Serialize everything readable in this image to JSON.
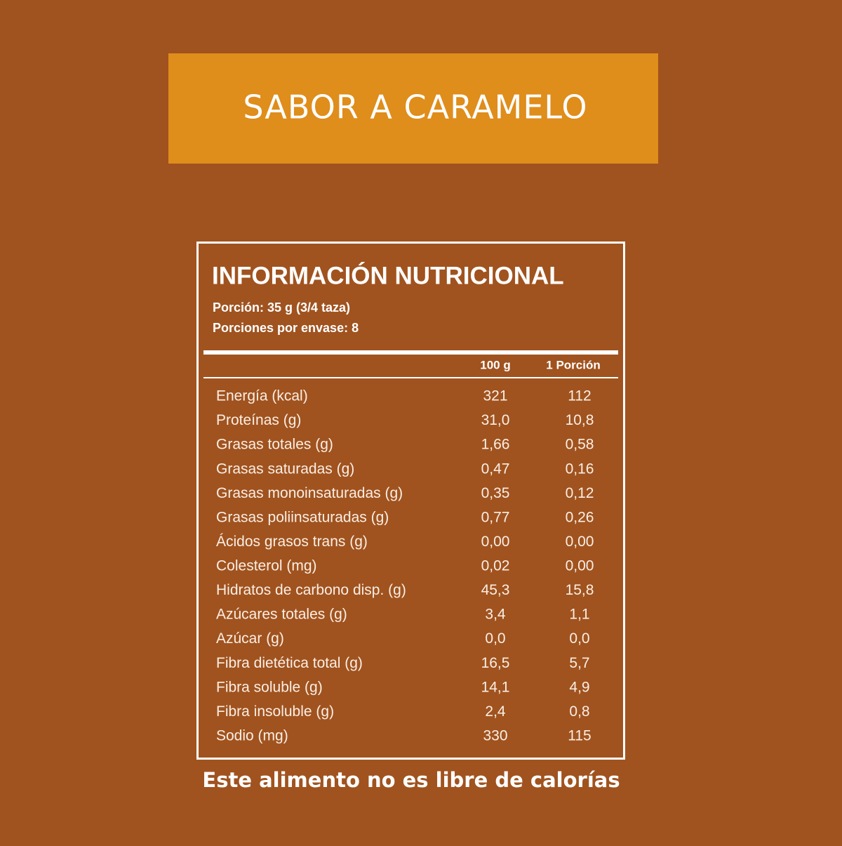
{
  "banner": {
    "title": "SABOR A CARAMELO"
  },
  "table": {
    "title": "INFORMACIÓN NUTRICIONAL",
    "serving": "Porción: 35 g  (3/4 taza)",
    "servings_per_container": "Porciones por envase: 8",
    "columns": [
      "100 g",
      "1 Porción"
    ],
    "rows": [
      [
        "Energía (kcal)",
        "321",
        "112"
      ],
      [
        "Proteínas (g)",
        "31,0",
        "10,8"
      ],
      [
        "Grasas totales (g)",
        "1,66",
        "0,58"
      ],
      [
        "Grasas saturadas (g)",
        "0,47",
        "0,16"
      ],
      [
        "Grasas monoinsaturadas (g)",
        "0,35",
        "0,12"
      ],
      [
        "Grasas poliinsaturadas (g)",
        "0,77",
        "0,26"
      ],
      [
        "Ácidos grasos trans (g)",
        "0,00",
        "0,00"
      ],
      [
        "Colesterol (mg)",
        "0,02",
        "0,00"
      ],
      [
        "Hidratos de carbono disp. (g)",
        "45,3",
        "15,8"
      ],
      [
        "Azúcares totales (g)",
        "3,4",
        "1,1"
      ],
      [
        "Azúcar (g)",
        "0,0",
        "0,0"
      ],
      [
        "Fibra dietética total (g)",
        "16,5",
        "5,7"
      ],
      [
        "Fibra soluble (g)",
        "14,1",
        "4,9"
      ],
      [
        "Fibra insoluble (g)",
        "2,4",
        "0,8"
      ],
      [
        "Sodio (mg)",
        "330",
        "115"
      ]
    ]
  },
  "footer": "Este alimento no es libre de calorías"
}
